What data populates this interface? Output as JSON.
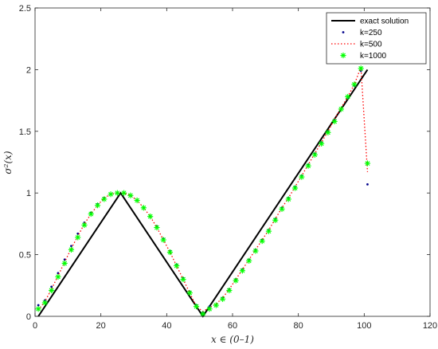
{
  "chart_data": {
    "type": "line",
    "title": "",
    "xlabel": "x ∈ (0–1)",
    "ylabel": "σ²(x)",
    "xlim": [
      0,
      120
    ],
    "ylim": [
      0,
      2.5
    ],
    "xticks": [
      0,
      20,
      40,
      60,
      80,
      100,
      120
    ],
    "yticks": [
      0,
      0.5,
      1,
      1.5,
      2,
      2.5
    ],
    "legend_position": "top-right",
    "grid": false,
    "series": [
      {
        "name": "exact solution",
        "style": "solid-line",
        "color": "#000000",
        "x": [
          1,
          26,
          51,
          101
        ],
        "y": [
          0,
          1.0,
          0,
          2.0
        ]
      },
      {
        "name": "k=250",
        "style": "dots",
        "color": "#00008b",
        "x": [
          1,
          3,
          5,
          7,
          9,
          11,
          13,
          15,
          17,
          19,
          21,
          23,
          25,
          27,
          29,
          31,
          33,
          35,
          37,
          39,
          41,
          43,
          45,
          47,
          49,
          51,
          53,
          55,
          57,
          59,
          61,
          63,
          65,
          67,
          69,
          71,
          73,
          75,
          77,
          79,
          81,
          83,
          85,
          87,
          89,
          91,
          93,
          95,
          97,
          99,
          101
        ],
        "y": [
          0.09,
          0.13,
          0.24,
          0.35,
          0.46,
          0.57,
          0.67,
          0.76,
          0.84,
          0.91,
          0.96,
          0.99,
          1.0,
          1.0,
          0.98,
          0.94,
          0.88,
          0.81,
          0.73,
          0.63,
          0.53,
          0.42,
          0.31,
          0.2,
          0.09,
          0.03,
          0.08,
          0.09,
          0.15,
          0.22,
          0.3,
          0.38,
          0.46,
          0.54,
          0.62,
          0.7,
          0.79,
          0.88,
          0.96,
          1.05,
          1.14,
          1.23,
          1.32,
          1.41,
          1.5,
          1.59,
          1.68,
          1.77,
          1.87,
          1.99,
          1.07
        ]
      },
      {
        "name": "k=500",
        "style": "dotted-line",
        "color": "#ff0000",
        "x": [
          1,
          3,
          5,
          7,
          9,
          11,
          13,
          15,
          17,
          19,
          21,
          23,
          25,
          27,
          29,
          31,
          33,
          35,
          37,
          39,
          41,
          43,
          45,
          47,
          49,
          51,
          53,
          55,
          57,
          59,
          61,
          63,
          65,
          67,
          69,
          71,
          73,
          75,
          77,
          79,
          81,
          83,
          85,
          87,
          89,
          91,
          93,
          95,
          97,
          99,
          101
        ],
        "y": [
          0.05,
          0.12,
          0.22,
          0.33,
          0.44,
          0.55,
          0.65,
          0.75,
          0.83,
          0.9,
          0.96,
          0.99,
          1.0,
          1.0,
          0.98,
          0.94,
          0.88,
          0.81,
          0.72,
          0.62,
          0.52,
          0.41,
          0.3,
          0.19,
          0.08,
          0.04,
          0.07,
          0.1,
          0.15,
          0.22,
          0.3,
          0.38,
          0.46,
          0.54,
          0.62,
          0.7,
          0.79,
          0.88,
          0.96,
          1.05,
          1.14,
          1.23,
          1.32,
          1.41,
          1.5,
          1.6,
          1.69,
          1.78,
          1.88,
          2.02,
          1.17
        ]
      },
      {
        "name": "k=1000",
        "style": "asterisk-markers",
        "color": "#00ff00",
        "x": [
          1,
          3,
          5,
          7,
          9,
          11,
          13,
          15,
          17,
          19,
          21,
          23,
          25,
          27,
          29,
          31,
          33,
          35,
          37,
          39,
          41,
          43,
          45,
          47,
          49,
          51,
          53,
          55,
          57,
          59,
          61,
          63,
          65,
          67,
          69,
          71,
          73,
          75,
          77,
          79,
          81,
          83,
          85,
          87,
          89,
          91,
          93,
          95,
          97,
          99,
          101
        ],
        "y": [
          0.06,
          0.11,
          0.21,
          0.32,
          0.43,
          0.54,
          0.64,
          0.74,
          0.83,
          0.9,
          0.95,
          0.99,
          1.0,
          1.0,
          0.98,
          0.94,
          0.88,
          0.81,
          0.72,
          0.62,
          0.52,
          0.41,
          0.3,
          0.19,
          0.08,
          0.02,
          0.06,
          0.09,
          0.14,
          0.21,
          0.29,
          0.37,
          0.45,
          0.53,
          0.61,
          0.69,
          0.78,
          0.87,
          0.95,
          1.04,
          1.13,
          1.22,
          1.31,
          1.4,
          1.49,
          1.58,
          1.68,
          1.78,
          1.88,
          2.01,
          1.24
        ]
      }
    ]
  }
}
